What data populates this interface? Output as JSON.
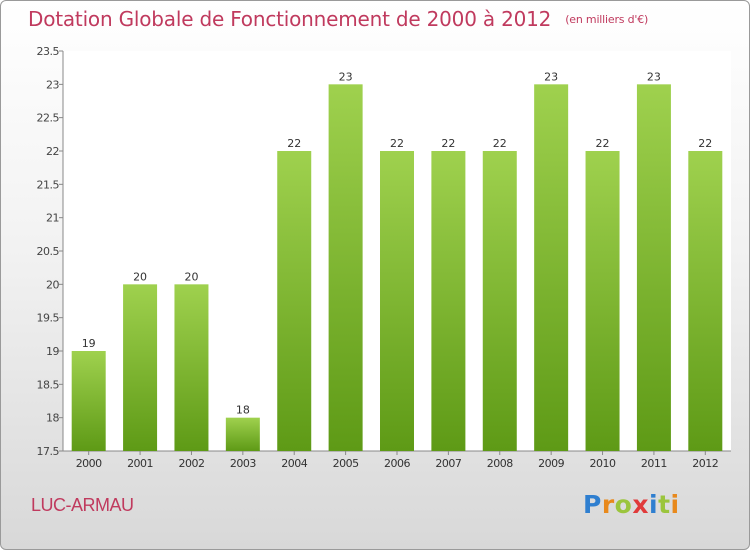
{
  "title": "Dotation Globale de Fonctionnement de 2000 à 2012",
  "unit": "(en milliers d'€)",
  "location": "LUC-ARMAU",
  "brand": {
    "text": "Proxiti",
    "letters": [
      "P",
      "r",
      "o",
      "x",
      "i",
      "t",
      "i"
    ],
    "colors": [
      "#2f7fd0",
      "#e8891c",
      "#9bc53d",
      "#e03a3a",
      "#2f7fd0",
      "#9bc53d",
      "#e8891c"
    ]
  },
  "colors": {
    "bar_top": "#9fd14e",
    "bar_bottom": "#5e9a16",
    "title": "#c03a5e"
  },
  "chart_data": {
    "type": "bar",
    "categories": [
      "2000",
      "2001",
      "2002",
      "2003",
      "2004",
      "2005",
      "2006",
      "2007",
      "2008",
      "2009",
      "2010",
      "2011",
      "2012"
    ],
    "values": [
      19,
      20,
      20,
      18,
      22,
      23,
      22,
      22,
      22,
      23,
      22,
      23,
      22
    ],
    "data_labels": [
      "19",
      "20",
      "20",
      "18",
      "22",
      "23",
      "22",
      "22",
      "22",
      "23",
      "22",
      "23",
      "22"
    ],
    "ylim": [
      17.5,
      23.5
    ],
    "yticks": [
      "17.5",
      "18",
      "18.5",
      "19",
      "19.5",
      "20",
      "20.5",
      "21",
      "21.5",
      "22",
      "22.5",
      "23",
      "23.5"
    ],
    "grid": false,
    "xlabel": "",
    "ylabel": ""
  }
}
